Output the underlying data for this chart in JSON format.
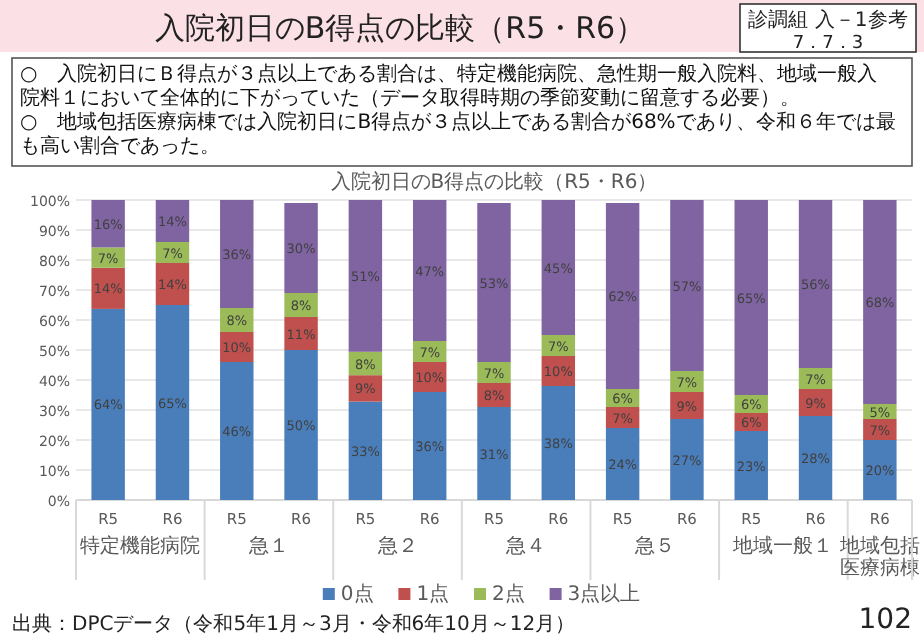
{
  "chart_data": {
    "type": "bar",
    "stacked": true,
    "title": "入院初日のB得点の比較（R5・R6）",
    "subtitle": "入院初日のB得点の比較（R5・R6）",
    "categories": [
      "R5",
      "R6",
      "R5",
      "R6",
      "R5",
      "R6",
      "R5",
      "R6",
      "R5",
      "R6",
      "R5",
      "R6",
      "R6"
    ],
    "series": [
      {
        "name": "0点",
        "color": "#4a7ebb",
        "values": [
          63.7,
          65,
          46,
          50,
          32.8,
          36,
          31,
          38,
          24,
          27,
          23,
          28,
          20
        ],
        "value_labels": [
          "64%",
          "65%",
          "46%",
          "50%",
          "33%",
          "36%",
          "31%",
          "38%",
          "24%",
          "27%",
          "23%",
          "28%",
          "20%"
        ]
      },
      {
        "name": "1点",
        "color": "#c0504d",
        "values": [
          13.7,
          14,
          10,
          11,
          8.8,
          10,
          8,
          10,
          7,
          9,
          6,
          9,
          7
        ],
        "value_labels": [
          "14%",
          "14%",
          "10%",
          "11%",
          "9%",
          "10%",
          "8%",
          "10%",
          "7%",
          "9%",
          "6%",
          "9%",
          "7%"
        ]
      },
      {
        "name": "2点",
        "color": "#9bbb59",
        "values": [
          6.8,
          7,
          8,
          8,
          7.8,
          7,
          7,
          7,
          6,
          7,
          6,
          7,
          5
        ],
        "value_labels": [
          "7%",
          "7%",
          "8%",
          "8%",
          "8%",
          "7%",
          "7%",
          "7%",
          "6%",
          "7%",
          "6%",
          "7%",
          "5%"
        ]
      },
      {
        "name": "3点以上",
        "color": "#8064a2",
        "values": [
          15.8,
          14,
          36,
          30,
          50.6,
          47,
          53,
          45,
          62,
          57,
          65,
          56,
          68
        ],
        "value_labels": [
          "16%",
          "14%",
          "36%",
          "30%",
          "51%",
          "47%",
          "53%",
          "45%",
          "62%",
          "57%",
          "65%",
          "56%",
          "68%"
        ]
      }
    ],
    "ylim": [
      0,
      100
    ],
    "yticks": [
      {
        "value": 0,
        "label": "0%"
      },
      {
        "value": 10,
        "label": "10%"
      },
      {
        "value": 20,
        "label": "20%"
      },
      {
        "value": 30,
        "label": "30%"
      },
      {
        "value": 40,
        "label": "40%"
      },
      {
        "value": 50,
        "label": "50%"
      },
      {
        "value": 60,
        "label": "60%"
      },
      {
        "value": 70,
        "label": "70%"
      },
      {
        "value": 80,
        "label": "80%"
      },
      {
        "value": 90,
        "label": "90%"
      },
      {
        "value": 100,
        "label": "100%"
      }
    ],
    "grid": "y",
    "legend": "bottom",
    "annotations": [
      "診調組 入－1参考",
      "7．7．3",
      "○　入院初日にＢ得点が３点以上である割合は、特定機能病院、急性期一般入院料、地域一般入院料１において全体的に下がっていた（データ取得時期の季節変動に留意する必要）。",
      "○　地域包括医療病棟では入院初日にB得点が３点以上である割合が68%であり、令和６年では最も高い割合であった。",
      "特定機能病院",
      "急１",
      "急２",
      "急４",
      "急５",
      "地域一般１",
      "地域包括医療病棟",
      "出典：DPCデータ（令和5年1月～3月・令和6年10月～12月）",
      "102"
    ]
  }
}
